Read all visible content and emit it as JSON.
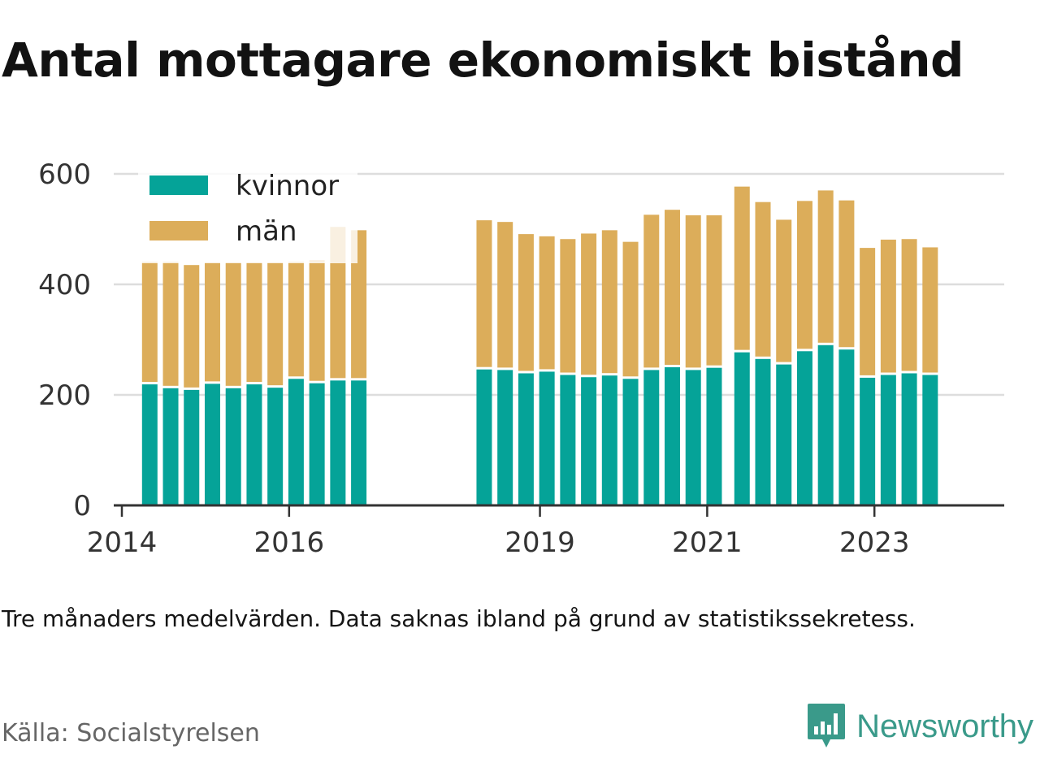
{
  "title": "Antal mottagare ekonomiskt bistånd",
  "note": "Tre månaders medelvärden. Data saknas ibland på grund av statistikssekretess.",
  "source": "Källa: Socialstyrelsen",
  "brand": {
    "name": "Newsworthy",
    "icon": "bar-chart-speech-bubble-icon",
    "color": "#3a9a8a"
  },
  "colors": {
    "kvinnor": "#05a398",
    "man": "#dcad5a",
    "grid": "#dddddd",
    "axis": "#333333"
  },
  "chart_data": {
    "type": "bar",
    "stacked": true,
    "title": "Antal mottagare ekonomiskt bistånd",
    "legend_position": "top-left",
    "grid": true,
    "ylim": [
      0,
      600
    ],
    "yticks": [
      0,
      200,
      400,
      600
    ],
    "xlim": [
      "2014-01",
      "2024-06"
    ],
    "xticks": [
      "2014",
      "2016",
      "2019",
      "2021",
      "2023"
    ],
    "x": [
      "2014-05",
      "2014-08",
      "2014-11",
      "2015-02",
      "2015-05",
      "2015-08",
      "2015-11",
      "2016-02",
      "2016-05",
      "2016-08",
      "2016-11",
      "2018-05",
      "2018-08",
      "2018-11",
      "2019-02",
      "2019-05",
      "2019-08",
      "2019-11",
      "2020-02",
      "2020-05",
      "2020-08",
      "2020-11",
      "2021-02",
      "2021-06",
      "2021-09",
      "2021-12",
      "2022-03",
      "2022-06",
      "2022-09",
      "2022-12",
      "2023-03",
      "2023-06",
      "2023-09"
    ],
    "series": [
      {
        "name": "kvinnor",
        "values": [
          219,
          212,
          209,
          220,
          212,
          219,
          213,
          229,
          221,
          226,
          226,
          246,
          245,
          239,
          242,
          236,
          232,
          235,
          229,
          245,
          250,
          245,
          249,
          277,
          265,
          255,
          279,
          290,
          282,
          231,
          236,
          239,
          236
        ]
      },
      {
        "name": "män",
        "values": [
          222,
          229,
          226,
          220,
          228,
          221,
          227,
          212,
          223,
          278,
          272,
          270,
          268,
          252,
          245,
          246,
          260,
          263,
          248,
          281,
          285,
          280,
          276,
          300,
          284,
          262,
          272,
          280,
          270,
          235,
          245,
          243,
          231
        ]
      }
    ]
  }
}
